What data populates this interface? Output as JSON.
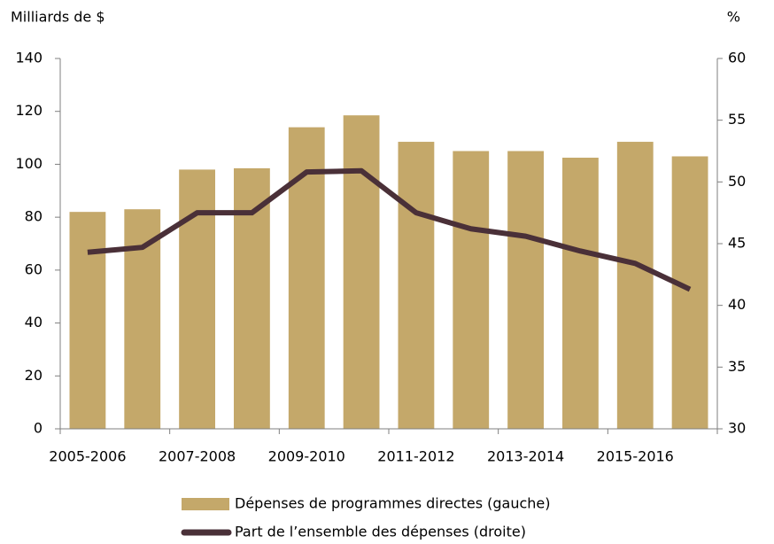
{
  "chart_data": {
    "type": "bar",
    "y_label": "Milliards de $",
    "y2_label": "%",
    "categories": [
      "2005-2006",
      null,
      "2007-2008",
      null,
      "2009-2010",
      null,
      "2011-2012",
      null,
      "2013-2014",
      null,
      "2015-2016",
      null
    ],
    "series": [
      {
        "name": "Dépenses de programmes directes (gauche)",
        "type": "bar",
        "color": "#c4a86a",
        "values": [
          82,
          83,
          98,
          98.5,
          114,
          118.5,
          108.5,
          105,
          105,
          102.5,
          108.5,
          103
        ]
      },
      {
        "name": "Part de l’ensemble des dépenses (droite)",
        "type": "line",
        "axis": "y2",
        "color": "#4a3038",
        "values": [
          44.3,
          44.7,
          47.5,
          47.5,
          50.8,
          50.9,
          47.5,
          46.2,
          45.6,
          44.4,
          43.4,
          41.3
        ]
      }
    ],
    "ylim": [
      0,
      140
    ],
    "yticks": [
      0,
      20,
      40,
      60,
      80,
      100,
      120,
      140
    ],
    "y2lim": [
      30,
      60
    ],
    "y2ticks": [
      30,
      35,
      40,
      45,
      50,
      55,
      60
    ],
    "grid": false,
    "legend": "bottom"
  }
}
